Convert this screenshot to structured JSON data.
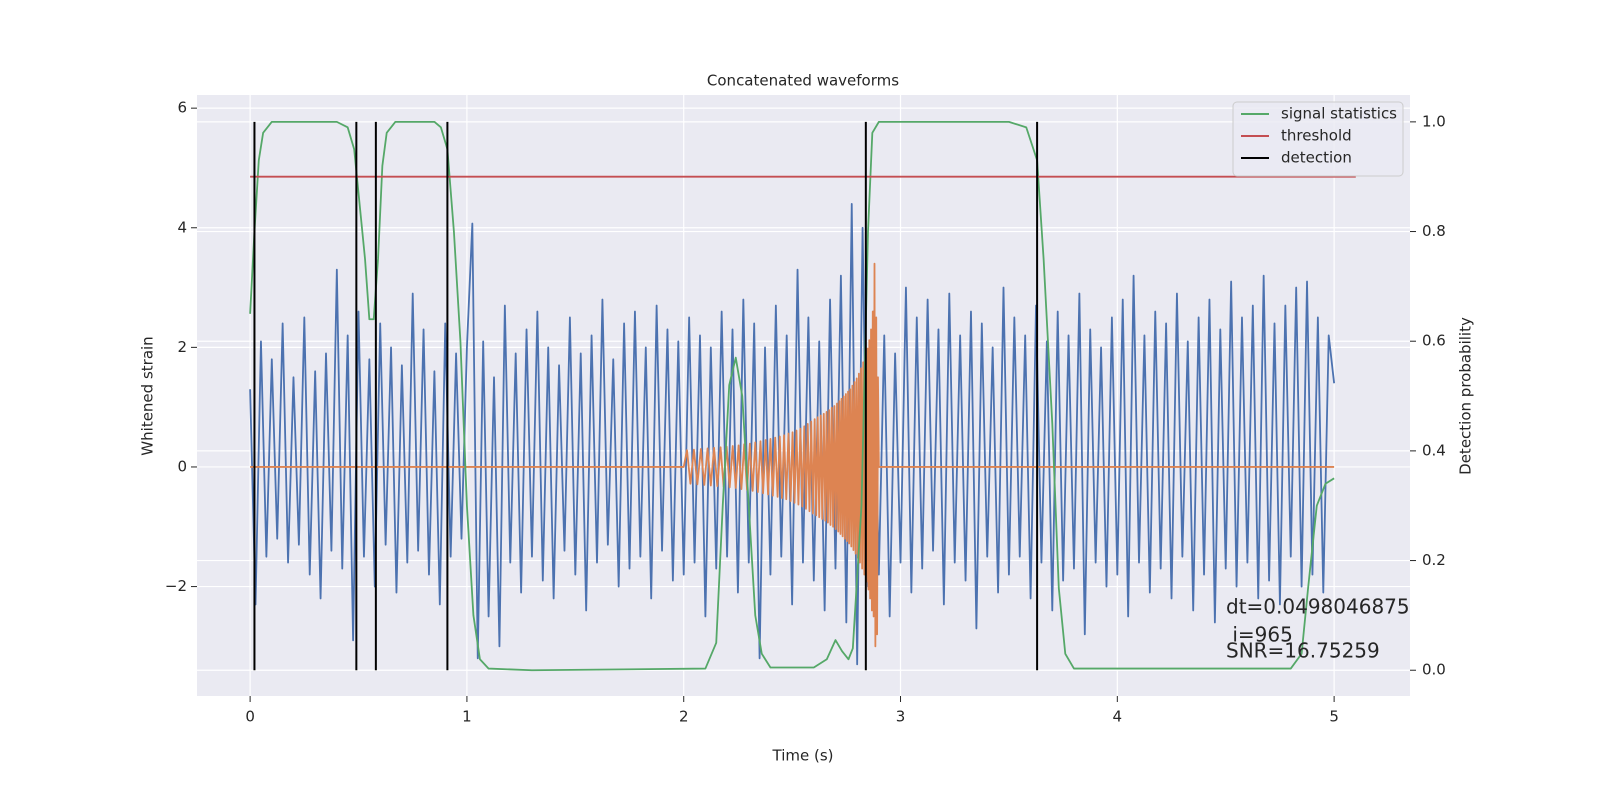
{
  "chart_data": {
    "type": "line",
    "title": "Concatenated waveforms",
    "xlabel": "Time (s)",
    "ylabel": "Whitened strain",
    "y2label": "Detection probability",
    "xlim": [
      -0.245,
      5.35
    ],
    "ylim": [
      -3.83,
      6.22
    ],
    "y2lim": [
      -0.047,
      1.049
    ],
    "xticks": [
      0,
      1,
      2,
      3,
      4,
      5
    ],
    "yticks": [
      {
        "value": -2,
        "label": "−2"
      },
      0,
      2,
      4,
      6
    ],
    "y2ticks": [
      {
        "value": 0,
        "label": "0.0"
      },
      0.2,
      0.4,
      0.6,
      0.8,
      {
        "value": 1,
        "label": "1.0"
      }
    ],
    "grid": true,
    "legend": "upper right",
    "annotations": [
      "dt=0.0498046875",
      " i=965",
      "SNR=16.75259"
    ],
    "series": [
      {
        "color": "#4c72b0",
        "x": [
          0,
          0.025,
          0.05,
          0.075,
          0.1,
          0.125,
          0.15,
          0.175,
          0.2,
          0.225,
          0.25,
          0.275,
          0.3,
          0.325,
          0.35,
          0.375,
          0.4,
          0.425,
          0.45,
          0.475,
          0.5,
          0.525,
          0.55,
          0.575,
          0.6,
          0.625,
          0.65,
          0.675,
          0.7,
          0.725,
          0.75,
          0.775,
          0.8,
          0.825,
          0.85,
          0.875,
          0.9,
          0.925,
          0.95,
          0.975,
          1,
          1.025,
          1.05,
          1.075,
          1.1,
          1.125,
          1.15,
          1.175,
          1.2,
          1.225,
          1.25,
          1.275,
          1.3,
          1.325,
          1.35,
          1.375,
          1.4,
          1.425,
          1.45,
          1.475,
          1.5,
          1.525,
          1.55,
          1.575,
          1.6,
          1.625,
          1.65,
          1.675,
          1.7,
          1.725,
          1.75,
          1.775,
          1.8,
          1.825,
          1.85,
          1.875,
          1.9,
          1.925,
          1.95,
          1.975,
          2,
          2.025,
          2.05,
          2.075,
          2.1,
          2.125,
          2.15,
          2.175,
          2.2,
          2.225,
          2.25,
          2.275,
          2.3,
          2.325,
          2.35,
          2.375,
          2.4,
          2.425,
          2.45,
          2.475,
          2.5,
          2.525,
          2.55,
          2.575,
          2.6,
          2.625,
          2.65,
          2.675,
          2.7,
          2.725,
          2.75,
          2.775,
          2.8,
          2.825,
          2.85,
          2.875,
          2.9,
          2.925,
          2.95,
          2.975,
          3,
          3.025,
          3.05,
          3.075,
          3.1,
          3.125,
          3.15,
          3.175,
          3.2,
          3.225,
          3.25,
          3.275,
          3.3,
          3.325,
          3.35,
          3.375,
          3.4,
          3.425,
          3.45,
          3.475,
          3.5,
          3.525,
          3.55,
          3.575,
          3.6,
          3.625,
          3.65,
          3.675,
          3.7,
          3.725,
          3.75,
          3.775,
          3.8,
          3.825,
          3.85,
          3.875,
          3.9,
          3.925,
          3.95,
          3.975,
          4,
          4.025,
          4.05,
          4.075,
          4.1,
          4.125,
          4.15,
          4.175,
          4.2,
          4.225,
          4.25,
          4.275,
          4.3,
          4.325,
          4.35,
          4.375,
          4.4,
          4.425,
          4.45,
          4.475,
          4.5,
          4.525,
          4.55,
          4.575,
          4.6,
          4.625,
          4.65,
          4.675,
          4.7,
          4.725,
          4.75,
          4.775,
          4.8,
          4.825,
          4.85,
          4.875,
          4.9,
          4.925,
          4.95,
          4.975,
          5
        ],
        "values": [
          1.3,
          -2.3,
          2.1,
          -1.5,
          1.8,
          -1.2,
          2.4,
          -1.6,
          1.5,
          -1.3,
          2.5,
          -1.8,
          1.6,
          -2.2,
          1.9,
          -1.4,
          3.3,
          -1.7,
          2.2,
          -2.9,
          2.6,
          -1.5,
          1.8,
          -2.0,
          2.4,
          -1.3,
          2.0,
          -2.1,
          1.7,
          -1.6,
          2.9,
          -1.4,
          2.3,
          -1.8,
          1.6,
          -2.3,
          2.4,
          -1.5,
          1.9,
          -1.2,
          2.0,
          4.07,
          -3.2,
          2.1,
          -2.5,
          1.5,
          -3.0,
          2.7,
          -1.6,
          1.9,
          -2.1,
          2.3,
          -1.5,
          2.6,
          -1.9,
          2.0,
          -2.2,
          1.7,
          -1.4,
          2.5,
          -1.8,
          1.9,
          -2.4,
          2.2,
          -1.6,
          2.8,
          -1.3,
          1.8,
          -2.0,
          2.4,
          -1.7,
          2.6,
          -1.5,
          2.0,
          -2.2,
          2.7,
          -1.4,
          2.3,
          -1.9,
          2.1,
          -1.8,
          2.5,
          -1.6,
          2.2,
          -2.5,
          2.0,
          -1.7,
          2.6,
          -1.5,
          2.3,
          -2.1,
          2.8,
          -1.6,
          2.4,
          -3.2,
          2.0,
          -1.8,
          2.7,
          -1.5,
          2.2,
          -2.3,
          3.3,
          -1.6,
          2.5,
          -1.9,
          2.1,
          -2.4,
          2.8,
          -1.7,
          3.2,
          -2.6,
          4.4,
          -3.3,
          4.0,
          -2.0,
          2.6,
          -1.8,
          2.2,
          -2.5,
          1.9,
          -1.6,
          3.0,
          -2.1,
          2.5,
          -1.7,
          2.8,
          -1.4,
          2.3,
          -2.3,
          2.9,
          -1.6,
          2.2,
          -1.9,
          2.6,
          -2.7,
          2.4,
          -1.5,
          2.0,
          -2.1,
          3.0,
          -1.8,
          2.5,
          -1.5,
          2.2,
          -2.2,
          2.7,
          -1.6,
          2.1,
          -2.4,
          2.6,
          -1.9,
          2.2,
          -1.7,
          2.9,
          -2.8,
          2.3,
          -1.6,
          2.0,
          -2.0,
          2.5,
          -1.8,
          2.8,
          -2.5,
          3.2,
          -1.6,
          2.2,
          -2.1,
          2.6,
          -1.7,
          2.4,
          -2.2,
          2.9,
          -1.5,
          2.1,
          -2.4,
          2.5,
          -1.8,
          2.8,
          -2.6,
          2.3,
          -1.7,
          3.1,
          -2.0,
          2.5,
          -1.6,
          2.7,
          -2.2,
          3.2,
          -1.9,
          2.4,
          -2.3,
          2.7,
          -1.5,
          3.0,
          -2.0,
          3.1,
          -1.8,
          2.5,
          -2.1,
          2.2,
          1.4
        ]
      },
      {
        "color": "#dd8452",
        "x": [
          0,
          2.0,
          2.015,
          2.031,
          2.047,
          2.063,
          2.079,
          2.095,
          2.11,
          2.125,
          2.14,
          2.155,
          2.17,
          2.184,
          2.198,
          2.212,
          2.226,
          2.24,
          2.253,
          2.266,
          2.279,
          2.292,
          2.305,
          2.318,
          2.33,
          2.342,
          2.354,
          2.366,
          2.378,
          2.389,
          2.4,
          2.411,
          2.422,
          2.433,
          2.443,
          2.453,
          2.463,
          2.473,
          2.483,
          2.493,
          2.502,
          2.511,
          2.52,
          2.529,
          2.538,
          2.547,
          2.556,
          2.564,
          2.572,
          2.58,
          2.588,
          2.596,
          2.604,
          2.611,
          2.618,
          2.625,
          2.632,
          2.639,
          2.646,
          2.653,
          2.659,
          2.665,
          2.671,
          2.677,
          2.683,
          2.689,
          2.695,
          2.701,
          2.707,
          2.713,
          2.718,
          2.723,
          2.728,
          2.733,
          2.738,
          2.743,
          2.748,
          2.753,
          2.758,
          2.763,
          2.768,
          2.773,
          2.778,
          2.783,
          2.788,
          2.793,
          2.798,
          2.803,
          2.808,
          2.813,
          2.818,
          2.823,
          2.828,
          2.833,
          2.838,
          2.843,
          2.848,
          2.852,
          2.856,
          2.86,
          2.864,
          2.868,
          2.872,
          2.876,
          2.88,
          2.884,
          2.888,
          2.892,
          2.896,
          2.9,
          5.0
        ],
        "values": [
          0,
          0,
          0.28,
          -0.28,
          0.29,
          -0.29,
          0.3,
          -0.3,
          0.31,
          -0.31,
          0.32,
          -0.32,
          0.33,
          -0.33,
          0.34,
          -0.34,
          0.35,
          -0.35,
          0.36,
          -0.37,
          0.38,
          -0.38,
          0.39,
          -0.4,
          0.41,
          -0.42,
          0.43,
          -0.44,
          0.45,
          -0.46,
          0.47,
          -0.48,
          0.49,
          -0.5,
          0.51,
          -0.52,
          0.53,
          -0.54,
          0.56,
          -0.57,
          0.58,
          -0.6,
          0.61,
          -0.63,
          0.64,
          -0.66,
          0.68,
          -0.7,
          0.72,
          -0.74,
          0.76,
          -0.78,
          0.8,
          -0.81,
          0.83,
          -0.84,
          0.86,
          -0.87,
          0.89,
          -0.9,
          0.92,
          -0.93,
          0.95,
          -0.97,
          0.99,
          -1.0,
          1.02,
          -1.04,
          1.06,
          -1.08,
          1.1,
          -1.12,
          1.14,
          -1.16,
          1.18,
          -1.2,
          1.22,
          -1.24,
          1.26,
          -1.28,
          1.3,
          -1.33,
          1.36,
          -1.39,
          1.42,
          -1.45,
          1.48,
          -1.52,
          1.56,
          -1.6,
          1.65,
          -1.7,
          1.75,
          -1.8,
          1.86,
          -1.92,
          1.98,
          -2.05,
          2.12,
          -2.2,
          2.3,
          -2.4,
          2.6,
          -2.5,
          3.4,
          -3.0,
          2.5,
          -2.8,
          1.5,
          0,
          0
        ]
      },
      {
        "name": "signal statistics",
        "color": "#55a868",
        "axis": "y2",
        "x": [
          0,
          0.02,
          0.04,
          0.06,
          0.1,
          0.4,
          0.45,
          0.48,
          0.5,
          0.53,
          0.55,
          0.57,
          0.59,
          0.61,
          0.63,
          0.67,
          0.85,
          0.88,
          0.91,
          0.94,
          0.97,
          1.0,
          1.03,
          1.06,
          1.1,
          1.3,
          2.1,
          2.15,
          2.18,
          2.21,
          2.24,
          2.27,
          2.3,
          2.33,
          2.36,
          2.4,
          2.6,
          2.66,
          2.7,
          2.73,
          2.76,
          2.78,
          2.82,
          2.85,
          2.87,
          2.9,
          3.5,
          3.58,
          3.63,
          3.66,
          3.7,
          3.73,
          3.76,
          3.8,
          4.8,
          4.85,
          4.88,
          4.92,
          4.96,
          5.0
        ],
        "values": [
          0.65,
          0.8,
          0.93,
          0.98,
          1.0,
          1.0,
          0.99,
          0.95,
          0.87,
          0.75,
          0.64,
          0.64,
          0.75,
          0.92,
          0.98,
          1.0,
          1.0,
          0.99,
          0.95,
          0.8,
          0.6,
          0.3,
          0.1,
          0.02,
          0.003,
          0.0,
          0.003,
          0.05,
          0.3,
          0.52,
          0.57,
          0.5,
          0.3,
          0.1,
          0.03,
          0.005,
          0.005,
          0.02,
          0.055,
          0.035,
          0.02,
          0.04,
          0.3,
          0.8,
          0.98,
          1.0,
          1.0,
          0.99,
          0.93,
          0.75,
          0.45,
          0.15,
          0.03,
          0.003,
          0.003,
          0.03,
          0.15,
          0.3,
          0.34,
          0.35
        ]
      },
      {
        "name": "threshold",
        "color": "#c44e52",
        "axis": "y2",
        "x": [
          0,
          5.1
        ],
        "values": [
          0.9,
          0.9
        ]
      },
      {
        "name": "detection",
        "color": "#000000",
        "axis": "y2",
        "style": "vlines",
        "x": [
          0.02,
          0.49,
          0.58,
          0.91,
          2.84,
          3.63
        ],
        "span": [
          0,
          1
        ]
      }
    ]
  }
}
